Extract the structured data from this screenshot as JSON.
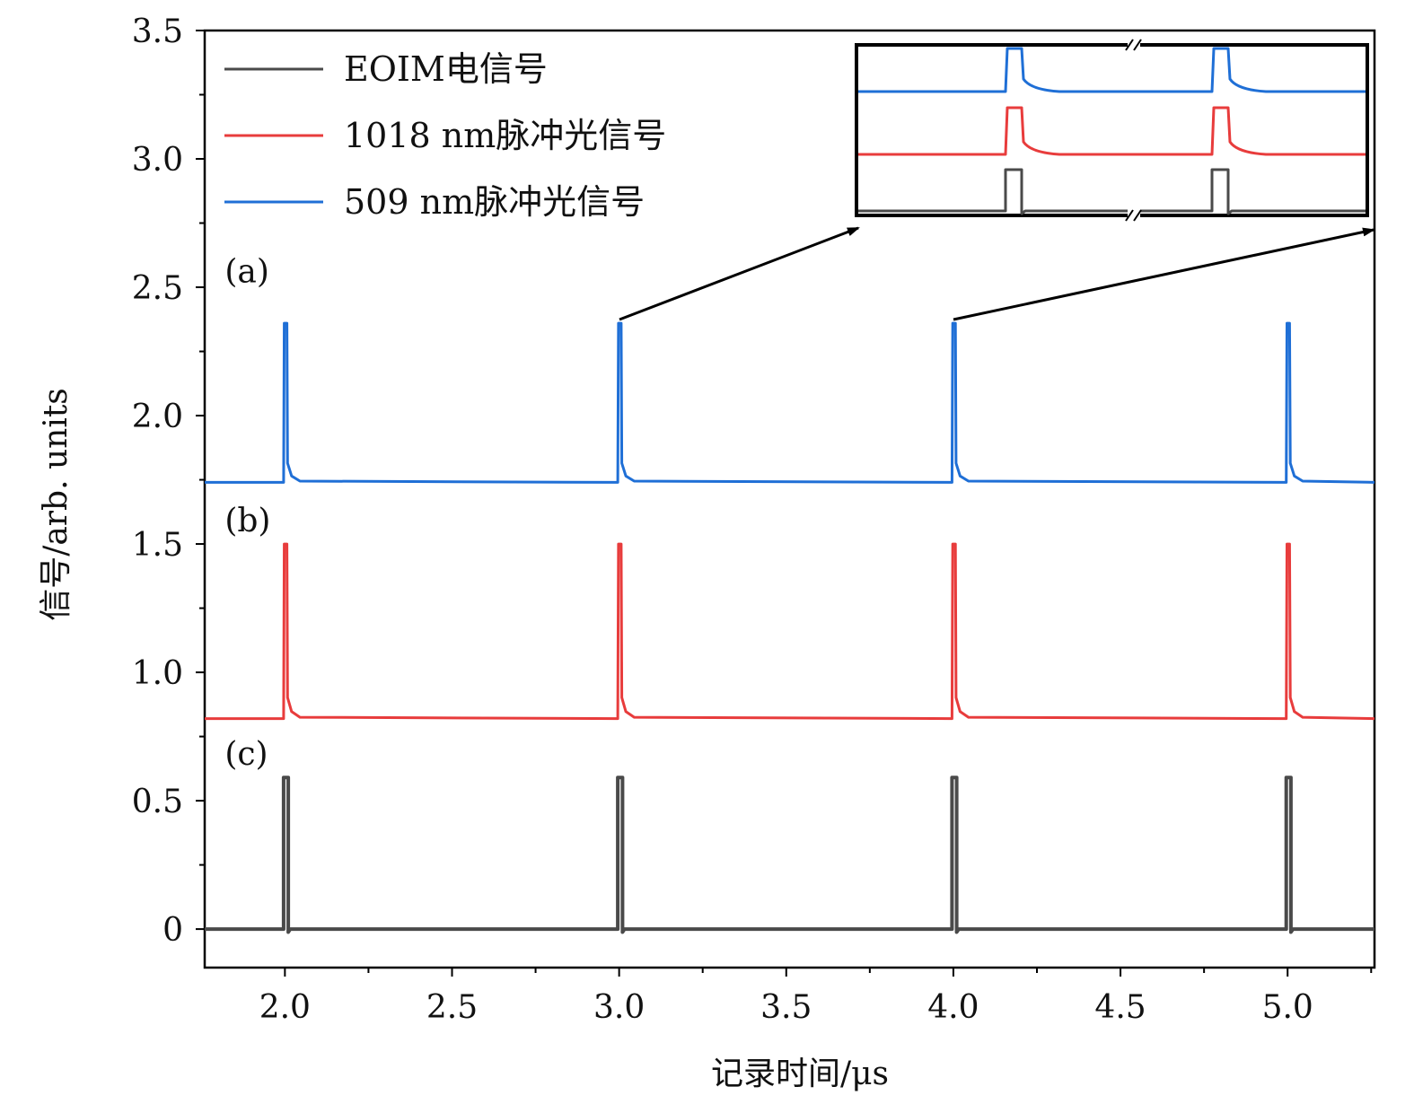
{
  "chart_data": {
    "type": "line",
    "title": "",
    "xlabel": "记录时间/μs",
    "ylabel": "信号/arb. units",
    "xlim": [
      1.76,
      5.26
    ],
    "ylim": [
      -0.15,
      3.5
    ],
    "xticks": [
      2.0,
      2.5,
      3.0,
      3.5,
      4.0,
      4.5,
      5.0
    ],
    "xtick_labels": [
      "2.0",
      "2.5",
      "3.0",
      "3.5",
      "4.0",
      "4.5",
      "5.0"
    ],
    "yticks": [
      0,
      0.5,
      1.0,
      1.5,
      2.0,
      2.5,
      3.0,
      3.5
    ],
    "ytick_labels": [
      "0",
      "0.5",
      "1.0",
      "1.5",
      "2.0",
      "2.5",
      "3.0",
      "3.5"
    ],
    "pulse_times": [
      2.0,
      3.0,
      4.0,
      5.0
    ],
    "series": [
      {
        "name": "EOIM电信号",
        "color": "#4a4a4a",
        "baseline": 0.0,
        "peak": 0.59,
        "panel": "(c)",
        "shape": "rect"
      },
      {
        "name": "1018 nm脉冲光信号",
        "color": "#e83c3c",
        "baseline": 0.82,
        "peak": 1.5,
        "panel": "(b)",
        "shape": "spike"
      },
      {
        "name": "509 nm脉冲光信号",
        "color": "#1f6fd6",
        "baseline": 1.74,
        "peak": 2.36,
        "panel": "(a)",
        "shape": "spike"
      }
    ],
    "panel_labels": [
      {
        "text": "(a)",
        "x": 1.82,
        "y": 2.52
      },
      {
        "text": "(b)",
        "x": 1.82,
        "y": 1.55
      },
      {
        "text": "(c)",
        "x": 1.82,
        "y": 0.64
      }
    ],
    "legend_position": "top-left",
    "inset": {
      "description": "zoomed view of pulses at 3.0 and 4.0 μs",
      "connector_from": [
        [
          3.0,
          2.37
        ],
        [
          4.0,
          2.37
        ]
      ]
    }
  }
}
